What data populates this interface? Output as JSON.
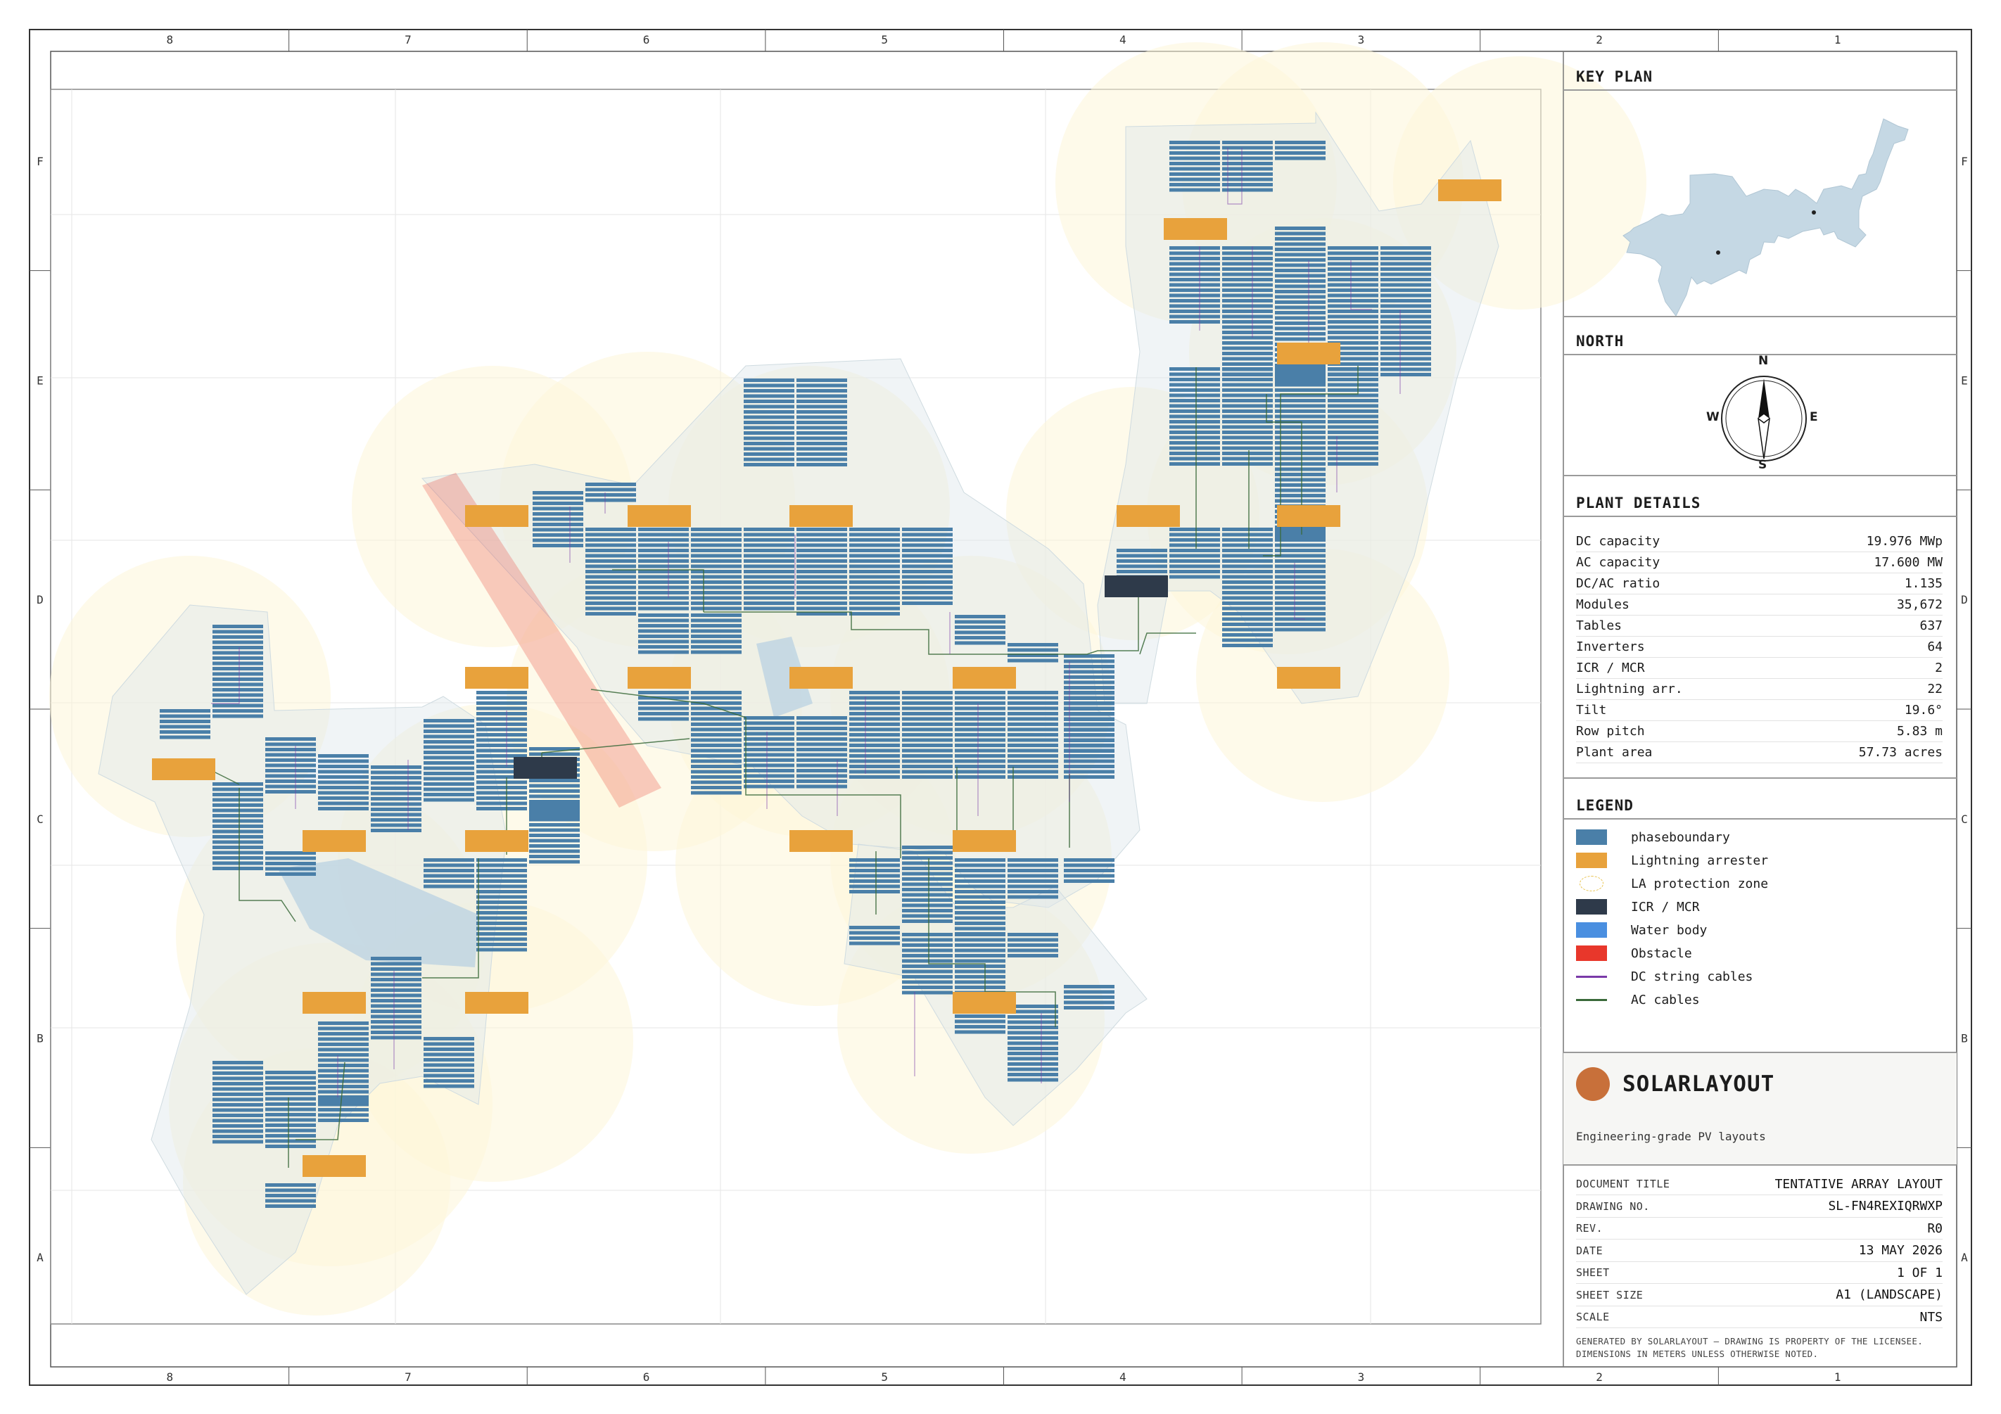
{
  "grid": {
    "top_columns": [
      "8",
      "7",
      "6",
      "5",
      "4",
      "3",
      "2",
      "1"
    ],
    "bottom_columns": [
      "8",
      "7",
      "6",
      "5",
      "4",
      "3",
      "2",
      "1"
    ],
    "left_rows": [
      "F",
      "E",
      "D",
      "C",
      "B",
      "A"
    ],
    "right_rows": [
      "F",
      "E",
      "D",
      "C",
      "B",
      "A"
    ]
  },
  "key_plan": {
    "title": "KEY PLAN"
  },
  "north": {
    "title": "NORTH",
    "n": "N",
    "s": "S",
    "e": "E",
    "w": "W"
  },
  "plant_details": {
    "title": "PLANT DETAILS",
    "rows": [
      {
        "label": "DC capacity",
        "value": "19.976 MWp"
      },
      {
        "label": "AC capacity",
        "value": "17.600 MW"
      },
      {
        "label": "DC/AC ratio",
        "value": "1.135"
      },
      {
        "label": "Modules",
        "value": "35,672"
      },
      {
        "label": "Tables",
        "value": "637"
      },
      {
        "label": "Inverters",
        "value": "64"
      },
      {
        "label": "ICR / MCR",
        "value": "2"
      },
      {
        "label": "Lightning arr.",
        "value": "22"
      },
      {
        "label": "Tilt",
        "value": "19.6°"
      },
      {
        "label": "Row pitch",
        "value": "5.83 m"
      },
      {
        "label": "Plant area",
        "value": "57.73 acres"
      }
    ]
  },
  "legend": {
    "title": "LEGEND",
    "items": [
      {
        "label": "phaseboundary",
        "color": "#4a7fa8",
        "kind": "box"
      },
      {
        "label": "Lightning arrester",
        "color": "#e8a23c",
        "kind": "box"
      },
      {
        "label": "LA protection zone",
        "color": "#e8c24a",
        "kind": "zone"
      },
      {
        "label": "ICR / MCR",
        "color": "#2e3a4a",
        "kind": "box"
      },
      {
        "label": "Water body",
        "color": "#4a8fe0",
        "kind": "box"
      },
      {
        "label": "Obstacle",
        "color": "#e8372b",
        "kind": "box"
      },
      {
        "label": "DC string cables",
        "color": "#7a3aa8",
        "kind": "line"
      },
      {
        "label": "AC cables",
        "color": "#3a6a3a",
        "kind": "line"
      }
    ]
  },
  "brand": {
    "name": "SOLARLAYOUT",
    "tagline": "Engineering-grade PV layouts",
    "color": "#c8703a"
  },
  "title_block": {
    "rows": [
      {
        "label": "DOCUMENT TITLE",
        "value": "TENTATIVE ARRAY LAYOUT"
      },
      {
        "label": "DRAWING NO.",
        "value": "SL-FN4REXIQRWXP"
      },
      {
        "label": "REV.",
        "value": "R0"
      },
      {
        "label": "DATE",
        "value": "13 MAY 2026"
      },
      {
        "label": "SHEET",
        "value": "1 OF 1"
      },
      {
        "label": "SHEET SIZE",
        "value": "A1 (LANDSCAPE)"
      },
      {
        "label": "SCALE",
        "value": "NTS"
      }
    ],
    "footer_line1": "GENERATED BY SOLARLAYOUT — DRAWING IS PROPERTY OF THE LICENSEE.",
    "footer_line2": "DIMENSIONS IN METERS UNLESS OTHERWISE NOTED."
  },
  "colors": {
    "table": "#4a7fa8",
    "arrester": "#e8a23c",
    "icr": "#2e3a4a",
    "boundary_fill": "#dde6ea",
    "zone_fill": "#fdf6d8",
    "obstacle": "#e8372b",
    "ac_cable": "#3a6a3a",
    "dc_cable": "#7a3aa8"
  }
}
